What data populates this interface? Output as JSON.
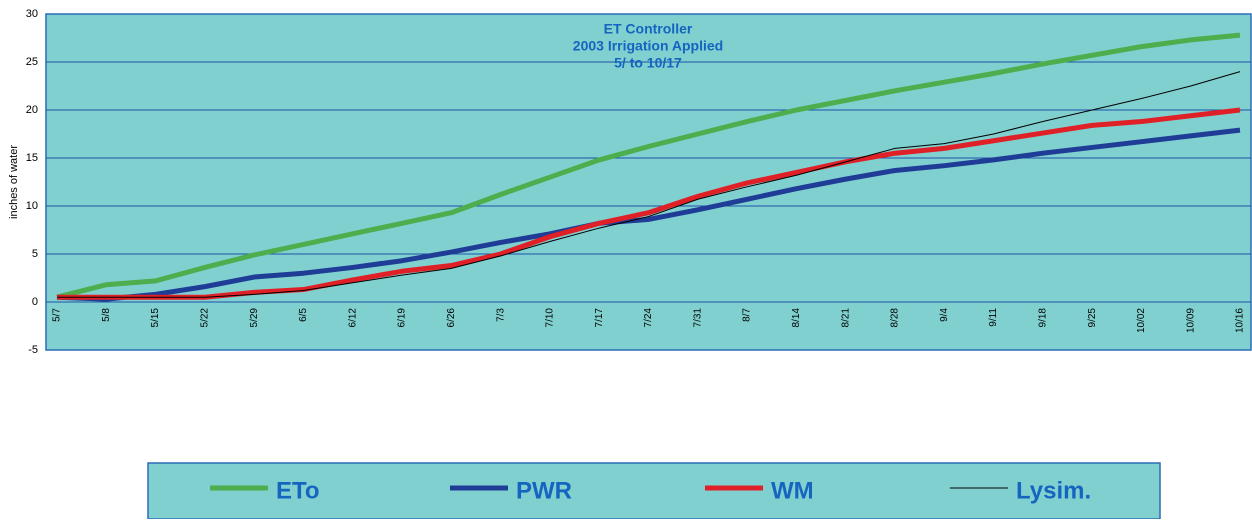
{
  "chart_data": {
    "type": "line",
    "title": [
      "ET Controller",
      "2003 Irrigation Applied",
      "5/  to 10/17"
    ],
    "y_label": "inches of water",
    "categories": [
      "5/7",
      "5/8",
      "5/15",
      "5/22",
      "5/29",
      "6/5",
      "6/12",
      "6/19",
      "6/26",
      "7/3",
      "7/10",
      "7/17",
      "7/24",
      "7/31",
      "8/7",
      "8/14",
      "8/21",
      "8/28",
      "9/4",
      "9/11",
      "9/18",
      "9/25",
      "10/02",
      "10/09",
      "10/16"
    ],
    "series": [
      {
        "name": "ETo",
        "color": "#4cae4c",
        "width": 5,
        "values": [
          0.5,
          1.8,
          2.2,
          3.6,
          4.9,
          6.0,
          7.1,
          8.2,
          9.3,
          11.2,
          13.0,
          14.8,
          16.2,
          17.5,
          18.8,
          20.0,
          21.0,
          22.0,
          22.9,
          23.8,
          24.8,
          25.7,
          26.6,
          27.3,
          27.8
        ]
      },
      {
        "name": "PWR",
        "color": "#1f3d96",
        "width": 5,
        "values": [
          0.5,
          0.3,
          0.8,
          1.6,
          2.6,
          3.0,
          3.6,
          4.3,
          5.2,
          6.2,
          7.1,
          8.2,
          8.6,
          9.6,
          10.7,
          11.8,
          12.8,
          13.7,
          14.2,
          14.8,
          15.5,
          16.1,
          16.7,
          17.3,
          17.9
        ]
      },
      {
        "name": "WM",
        "color": "#e02027",
        "width": 5,
        "values": [
          0.5,
          0.5,
          0.5,
          0.5,
          1.0,
          1.3,
          2.3,
          3.2,
          3.8,
          5.0,
          6.8,
          8.2,
          9.3,
          11.0,
          12.4,
          13.5,
          14.6,
          15.5,
          16.0,
          16.8,
          17.6,
          18.4,
          18.8,
          19.4,
          20.0
        ]
      },
      {
        "name": "Lysim.",
        "color": "#000000",
        "width": 1,
        "values": [
          0.5,
          0.5,
          0.5,
          0.5,
          0.8,
          1.2,
          2.0,
          2.8,
          3.5,
          4.8,
          6.3,
          7.7,
          8.9,
          10.7,
          12.0,
          13.2,
          14.6,
          16.0,
          16.5,
          17.5,
          18.8,
          20.0,
          21.2,
          22.5,
          24.0
        ]
      }
    ],
    "ylim": [
      -5,
      30
    ],
    "yticks": [
      -5,
      0,
      5,
      10,
      15,
      20,
      25,
      30
    ],
    "grid": true
  }
}
